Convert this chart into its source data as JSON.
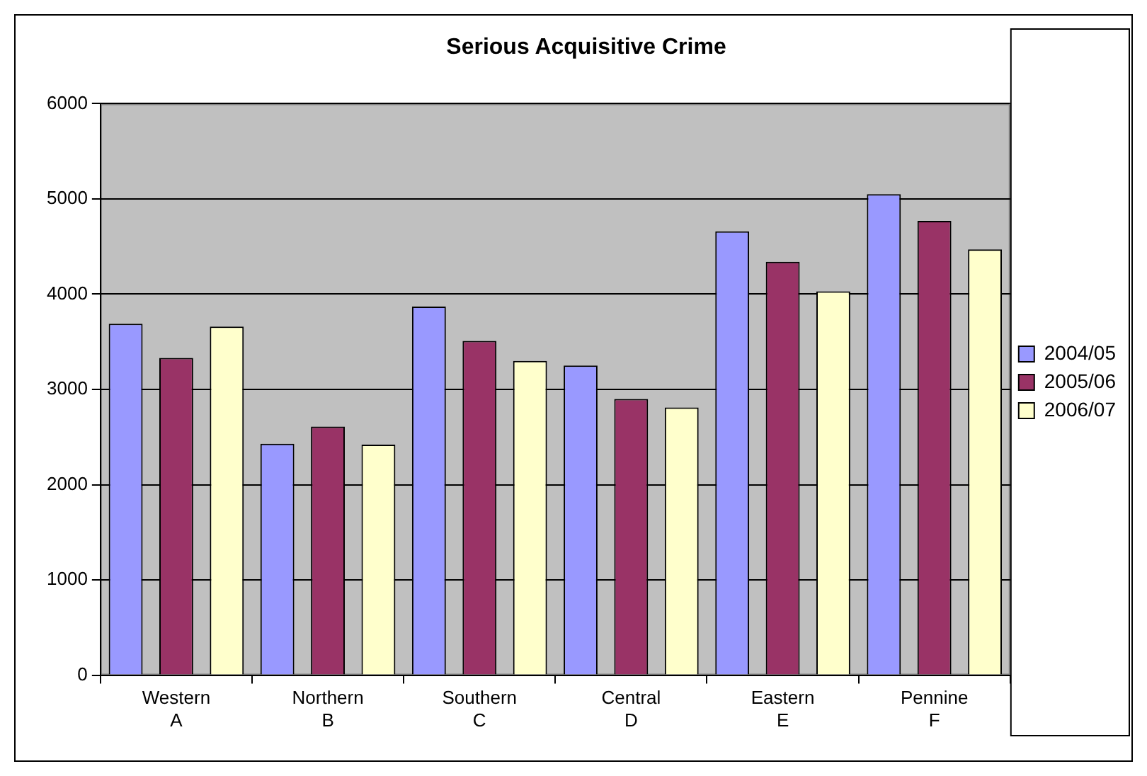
{
  "chart_data": {
    "type": "bar",
    "title": "Serious Acquisitive Crime",
    "categories": [
      "Western\nA",
      "Northern\nB",
      "Southern\nC",
      "Central\nD",
      "Eastern\nE",
      "Pennine\nF"
    ],
    "series": [
      {
        "name": "2004/05",
        "color": "#9999ff",
        "values": [
          3690,
          2430,
          3870,
          3250,
          4660,
          5050
        ]
      },
      {
        "name": "2005/06",
        "color": "#993366",
        "values": [
          3330,
          2610,
          3510,
          2900,
          4340,
          4770
        ]
      },
      {
        "name": "2006/07",
        "color": "#ffffcc",
        "values": [
          3660,
          2420,
          3300,
          2810,
          4030,
          4470
        ]
      }
    ],
    "ylim": [
      0,
      6000
    ],
    "yticks": [
      0,
      1000,
      2000,
      3000,
      4000,
      5000,
      6000
    ],
    "grid": "y",
    "legend": "right"
  }
}
